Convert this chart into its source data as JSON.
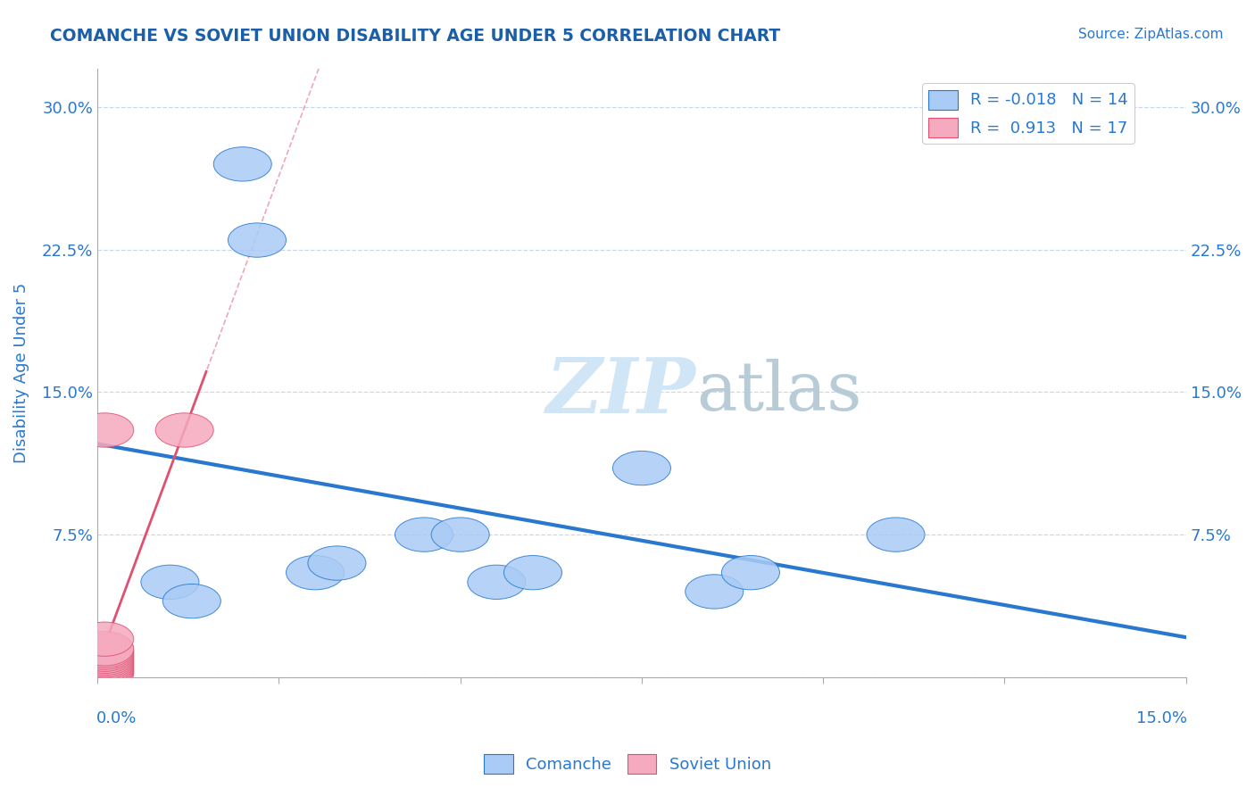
{
  "title": "COMANCHE VS SOVIET UNION DISABILITY AGE UNDER 5 CORRELATION CHART",
  "source": "Source: ZipAtlas.com",
  "ylabel": "Disability Age Under 5",
  "y_ticks": [
    0.0,
    0.075,
    0.15,
    0.225,
    0.3
  ],
  "y_tick_labels": [
    "",
    "7.5%",
    "15.0%",
    "22.5%",
    "30.0%"
  ],
  "xlim": [
    0.0,
    0.15
  ],
  "ylim": [
    0.0,
    0.32
  ],
  "comanche_x": [
    0.01,
    0.013,
    0.02,
    0.022,
    0.03,
    0.033,
    0.045,
    0.05,
    0.055,
    0.06,
    0.075,
    0.085,
    0.09,
    0.11
  ],
  "comanche_y": [
    0.05,
    0.04,
    0.27,
    0.23,
    0.055,
    0.06,
    0.075,
    0.075,
    0.05,
    0.055,
    0.11,
    0.045,
    0.055,
    0.075
  ],
  "soviet_x": [
    0.001,
    0.001,
    0.001,
    0.001,
    0.001,
    0.001,
    0.001,
    0.001,
    0.001,
    0.001,
    0.001,
    0.001,
    0.001,
    0.001,
    0.001,
    0.001,
    0.012
  ],
  "soviet_y": [
    0.002,
    0.003,
    0.004,
    0.005,
    0.006,
    0.007,
    0.008,
    0.009,
    0.01,
    0.011,
    0.012,
    0.013,
    0.014,
    0.015,
    0.02,
    0.13,
    0.13
  ],
  "R_comanche": -0.018,
  "N_comanche": 14,
  "R_soviet": 0.913,
  "N_soviet": 17,
  "comanche_color": "#aacbf5",
  "soviet_color": "#f5aabf",
  "comanche_line_color": "#2878d0",
  "soviet_line_color": "#e05070",
  "watermark_color": "#d0e5f5",
  "background_color": "#ffffff",
  "grid_color": "#c8d8ea",
  "title_color": "#1a5fa8",
  "axis_label_color": "#2878d0",
  "tick_color": "#2878d0",
  "legend_R_color": "#2878d0"
}
